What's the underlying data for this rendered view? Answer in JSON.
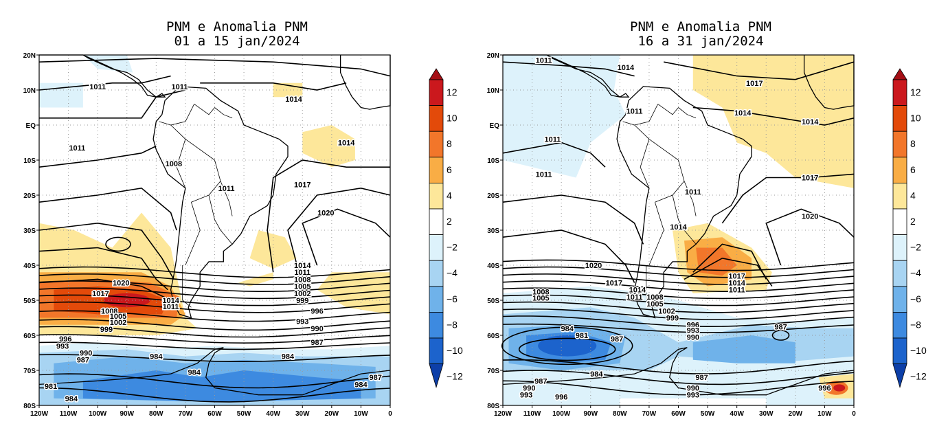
{
  "panels": [
    {
      "id": "left",
      "title_line1": "PNM e Anomalia PNM",
      "title_line2": "01 a 15 jan/2024",
      "contour_labels": [
        "1011",
        "1011",
        "1014",
        "1011",
        "1014",
        "1008",
        "1011",
        "1017",
        "1020",
        "1014",
        "1011",
        "1008",
        "1005",
        "1002",
        "999",
        "996",
        "993",
        "990",
        "987",
        "1020",
        "1017",
        "1014",
        "1011",
        "1008",
        "1005",
        "1002",
        "999",
        "996",
        "993",
        "990",
        "987",
        "984",
        "984",
        "984",
        "981",
        "984",
        "984",
        "987"
      ]
    },
    {
      "id": "right",
      "title_line1": "PNM e Anomalia PNM",
      "title_line2": "16 a 31 jan/2024",
      "contour_labels": [
        "1011",
        "1014",
        "1017",
        "1011",
        "1014",
        "1014",
        "1011",
        "1011",
        "1017",
        "1011",
        "1020",
        "1014",
        "1020",
        "1017",
        "1014",
        "1011",
        "1017",
        "1014",
        "1011",
        "1008",
        "1005",
        "1002",
        "999",
        "996",
        "993",
        "990",
        "1008",
        "1005",
        "984",
        "981",
        "987",
        "987",
        "984",
        "987",
        "990",
        "993",
        "987",
        "990",
        "993",
        "996",
        "996"
      ]
    }
  ],
  "axes": {
    "lat_labels": [
      "20N",
      "10N",
      "EQ",
      "10S",
      "20S",
      "30S",
      "40S",
      "50S",
      "60S",
      "70S",
      "80S"
    ],
    "lon_labels": [
      "120W",
      "110W",
      "100W",
      "90W",
      "80W",
      "70W",
      "60W",
      "50W",
      "40W",
      "30W",
      "20W",
      "10W",
      "0"
    ]
  },
  "colorbar": {
    "tick_labels": [
      "12",
      "10",
      "8",
      "6",
      "4",
      "2",
      "−2",
      "−4",
      "−6",
      "−8",
      "−10",
      "−12"
    ],
    "colors": [
      "#a50f15",
      "#cb181d",
      "#e34a0a",
      "#f2762a",
      "#f9ad45",
      "#fde79a",
      "#ffffff",
      "#ddf2fb",
      "#a8d4f2",
      "#6fb2ea",
      "#3d8ae0",
      "#1c63cc",
      "#0d3fa8"
    ]
  }
}
